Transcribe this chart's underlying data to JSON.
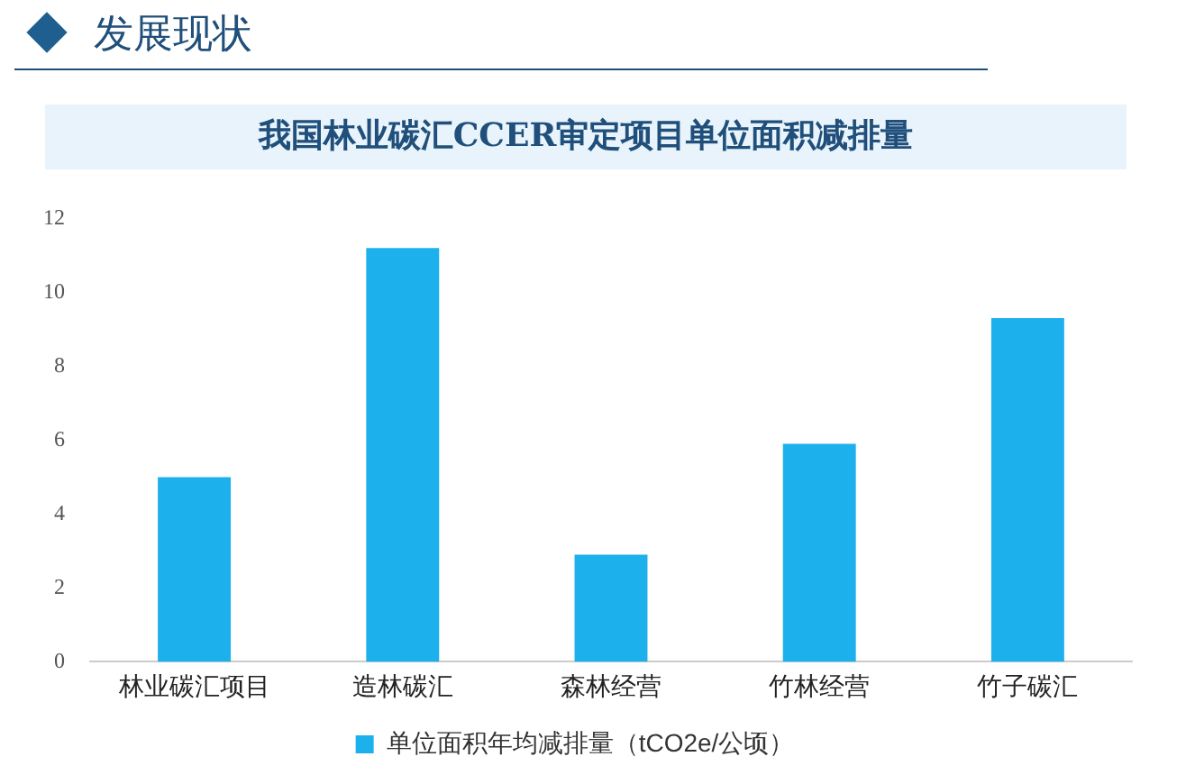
{
  "chart_data": {
    "type": "bar",
    "title": "我国林业碳汇CCER审定项目单位面积减排量",
    "annotations": [
      "发展现状"
    ],
    "categories": [
      "林业碳汇项目",
      "造林碳汇",
      "森林经营",
      "竹林经营",
      "竹子碳汇"
    ],
    "series": [
      {
        "name": "单位面积年均减排量（tCO2e/公顷）",
        "color": "#1cb0ec",
        "values": [
          5.0,
          11.2,
          2.9,
          5.9,
          9.3
        ]
      }
    ],
    "ylim": [
      0,
      12
    ],
    "yticks": [
      0,
      2,
      4,
      6,
      8,
      10,
      12
    ],
    "grid": false,
    "legend": "bottom"
  }
}
